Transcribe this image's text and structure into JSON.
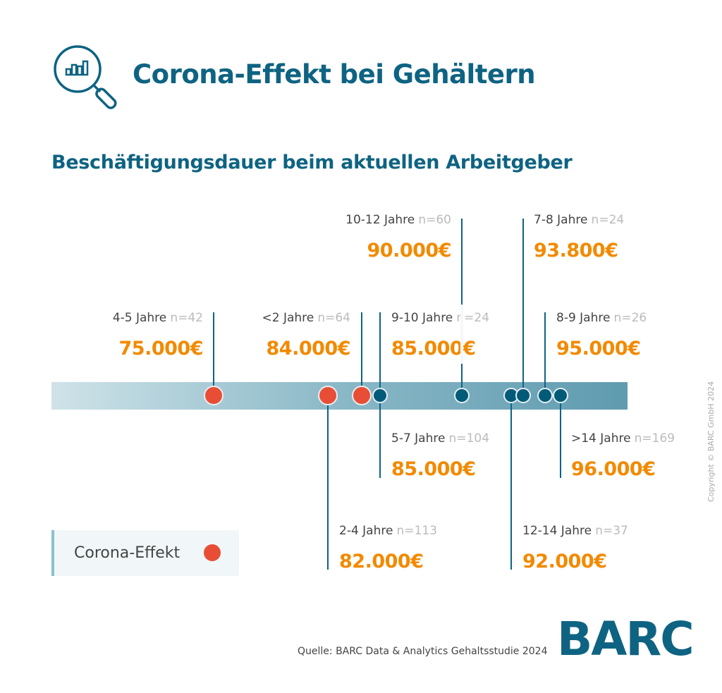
{
  "header": {
    "title": "Corona-Effekt bei Gehältern",
    "icon": "magnifier-bar-chart-icon"
  },
  "subtitle": "Beschäftigungsdauer beim aktuellen Arbeitgeber",
  "legend": {
    "label": "Corona-Effekt",
    "color": "#e84e35"
  },
  "source": "Quelle: BARC Data & Analytics Gehaltsstudie 2024",
  "logo": "BARC",
  "copyright": "Copyright © BARC GmbH 2024",
  "colors": {
    "title": "#0e6382",
    "value": "#f28a00",
    "corona": "#e84e35",
    "dot": "#005a78"
  },
  "chart_data": {
    "type": "scatter",
    "title": "Beschäftigungsdauer beim aktuellen Arbeitgeber",
    "xlabel": "",
    "ylabel": "",
    "unit": "€",
    "points": [
      {
        "label": "4-5 Jahre",
        "n": "n=42",
        "value": 75000,
        "value_label": "75.000€",
        "corona": true
      },
      {
        "label": "<2 Jahre",
        "n": "n=64",
        "value": 84000,
        "value_label": "84.000€",
        "corona": true
      },
      {
        "label": "9-10 Jahre",
        "n": "n=24",
        "value": 85000,
        "value_label": "85.000€",
        "corona": false
      },
      {
        "label": "5-7 Jahre",
        "n": "n=104",
        "value": 85000,
        "value_label": "85.000€",
        "corona": false
      },
      {
        "label": "2-4 Jahre",
        "n": "n=113",
        "value": 82000,
        "value_label": "82.000€",
        "corona": true
      },
      {
        "label": "10-12 Jahre",
        "n": "n=60",
        "value": 90000,
        "value_label": "90.000€",
        "corona": false
      },
      {
        "label": "12-14 Jahre",
        "n": "n=37",
        "value": 92000,
        "value_label": "92.000€",
        "corona": false
      },
      {
        "label": "7-8 Jahre",
        "n": "n=24",
        "value": 93800,
        "value_label": "93.800€",
        "corona": false
      },
      {
        "label": "8-9 Jahre",
        "n": "n=26",
        "value": 95000,
        "value_label": "95.000€",
        "corona": false
      },
      {
        "label": ">14 Jahre",
        "n": "n=169",
        "value": 96000,
        "value_label": "96.000€",
        "corona": false
      }
    ]
  }
}
